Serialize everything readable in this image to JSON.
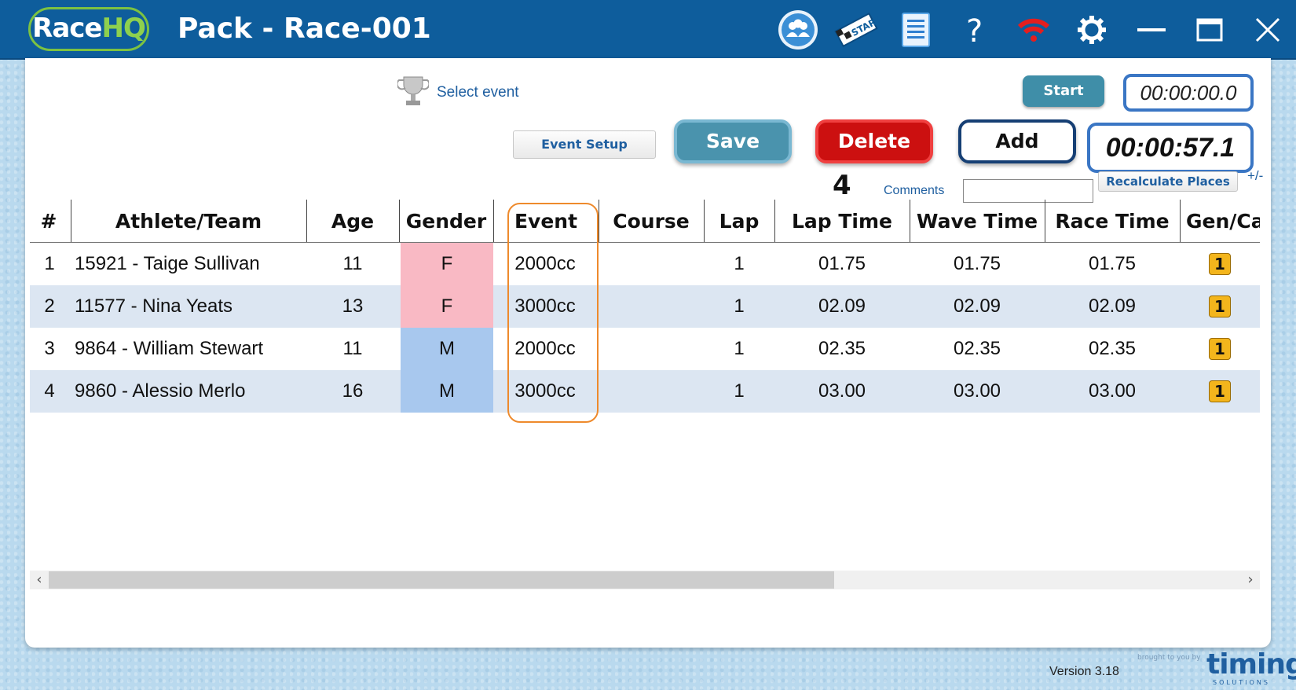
{
  "app": {
    "logo_main": "Race",
    "logo_accent": "HQ",
    "window_title": "Pack - Race-001"
  },
  "titlebar_icons": [
    "team-icon",
    "start-flag-icon",
    "document-icon",
    "help-icon",
    "wifi-icon",
    "settings-icon",
    "minimize-icon",
    "maximize-icon",
    "close-icon"
  ],
  "controls": {
    "select_event_label": "Select event",
    "start_label": "Start",
    "clock_small": "00:00:00.0",
    "event_setup_label": "Event Setup",
    "save_label": "Save",
    "delete_label": "Delete",
    "add_label": "Add",
    "clock_big": "00:00:57.1",
    "count": "4",
    "comments_label": "Comments",
    "comments_value": "",
    "recalculate_label": "Recalculate Places",
    "plus_minus": "+/-"
  },
  "table": {
    "headers": [
      "#",
      "Athlete/Team",
      "Age",
      "Gender",
      "Event",
      "Course",
      "Lap",
      "Lap Time",
      "Wave Time",
      "Race Time",
      "Gen/Ca"
    ],
    "rows": [
      {
        "num": "1",
        "athlete": "15921 - Taige Sullivan",
        "age": "11",
        "gender": "F",
        "event": "2000cc",
        "course": "",
        "lap": "1",
        "lap_time": "01.75",
        "wave_time": "01.75",
        "race_time": "01.75",
        "gen_cat": "1"
      },
      {
        "num": "2",
        "athlete": "11577 - Nina Yeats",
        "age": "13",
        "gender": "F",
        "event": "3000cc",
        "course": "",
        "lap": "1",
        "lap_time": "02.09",
        "wave_time": "02.09",
        "race_time": "02.09",
        "gen_cat": "1"
      },
      {
        "num": "3",
        "athlete": "9864 - William Stewart",
        "age": "11",
        "gender": "M",
        "event": "2000cc",
        "course": "",
        "lap": "1",
        "lap_time": "02.35",
        "wave_time": "02.35",
        "race_time": "02.35",
        "gen_cat": "1"
      },
      {
        "num": "4",
        "athlete": "9860 - Alessio Merlo",
        "age": "16",
        "gender": "M",
        "event": "3000cc",
        "course": "",
        "lap": "1",
        "lap_time": "03.00",
        "wave_time": "03.00",
        "race_time": "03.00",
        "gen_cat": "1"
      }
    ]
  },
  "footer": {
    "version": "Version 3.18",
    "brought_by": "brought to you by",
    "brand": "timing",
    "brand_sub": "SOLUTIONS"
  },
  "colors": {
    "titlebar": "#0e5d9c",
    "female": "#f9b9c4",
    "male": "#a8c8ee",
    "alt_row": "#dce6f2",
    "highlight": "#ee8a2c"
  }
}
